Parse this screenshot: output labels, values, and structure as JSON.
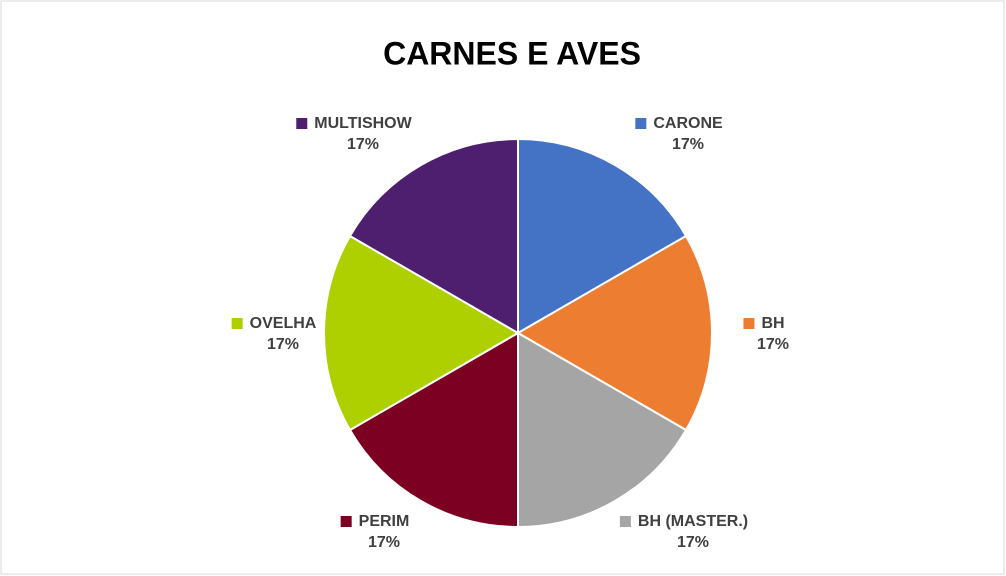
{
  "chart_data": {
    "type": "pie",
    "title": "CARNES E AVES",
    "categories": [
      "CARONE",
      "BH",
      "BH (MASTER.)",
      "PERIM",
      "OVELHA",
      "MULTISHOW"
    ],
    "values": [
      17,
      17,
      17,
      17,
      17,
      17
    ],
    "value_labels": [
      "17%",
      "17%",
      "17%",
      "17%",
      "17%",
      "17%"
    ],
    "colors": [
      "#4472c4",
      "#ed7d31",
      "#a5a5a5",
      "#7b0022",
      "#aecf00",
      "#4e1f6e"
    ]
  }
}
